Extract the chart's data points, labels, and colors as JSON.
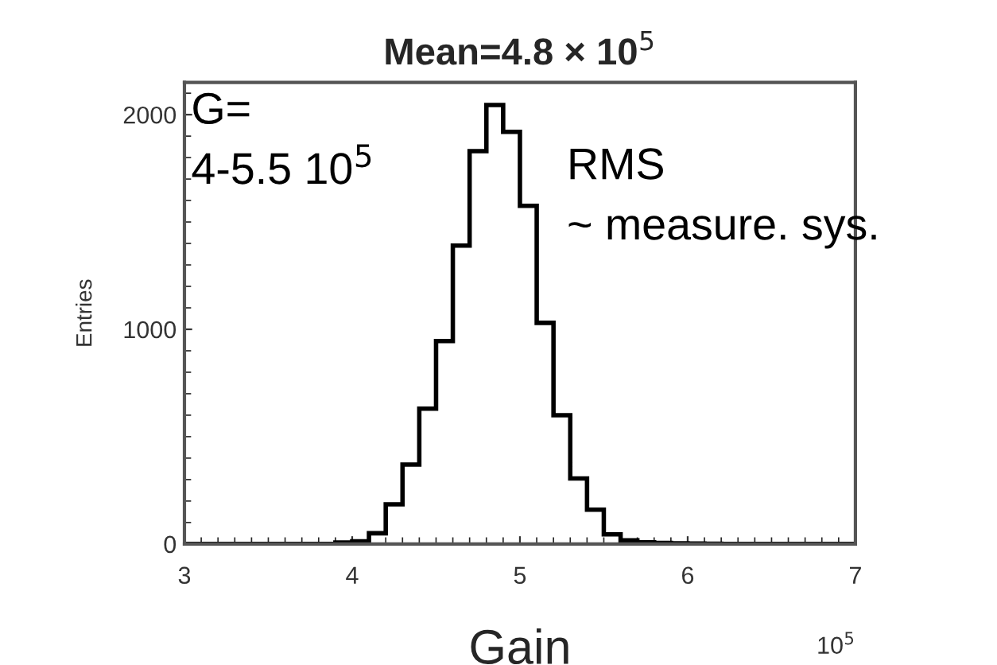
{
  "chart_data": {
    "type": "histogram",
    "title": "Mean=4.8 × 10$^{5}$",
    "xlabel": "Gain",
    "ylabel": "Entries",
    "bins": [
      3.0,
      3.1,
      3.2,
      3.3,
      3.4,
      3.5,
      3.6,
      3.7,
      3.8,
      3.9,
      4.0,
      4.1,
      4.2,
      4.3,
      4.4,
      4.5,
      4.6,
      4.7,
      4.8,
      4.9,
      5.0,
      5.1,
      5.2,
      5.3,
      5.4,
      5.5,
      5.6,
      5.7,
      5.8,
      5.9,
      6.0,
      6.1,
      6.2,
      6.3,
      6.4,
      6.5,
      6.6,
      6.7,
      6.8,
      6.9,
      7.0
    ],
    "values": [
      0,
      0,
      0,
      0,
      0,
      0,
      0,
      0,
      0,
      7,
      12,
      50,
      185,
      370,
      630,
      945,
      1390,
      1830,
      2045,
      1920,
      1575,
      1030,
      600,
      305,
      160,
      45,
      17,
      8,
      5,
      3,
      2,
      1,
      0,
      0,
      0,
      0,
      0,
      0,
      0,
      0
    ],
    "color": "#000000",
    "xlim": [
      3,
      7
    ],
    "xticks": [
      3,
      4,
      5,
      6,
      7
    ],
    "ylim": [
      0,
      2150
    ],
    "yticks": [
      0,
      1000,
      2000
    ],
    "grid": false,
    "annotations": [
      "G=\n4-5.5 10$^{5}$",
      "RMS\n~ measure. sys.",
      "10$^{5}$"
    ]
  }
}
